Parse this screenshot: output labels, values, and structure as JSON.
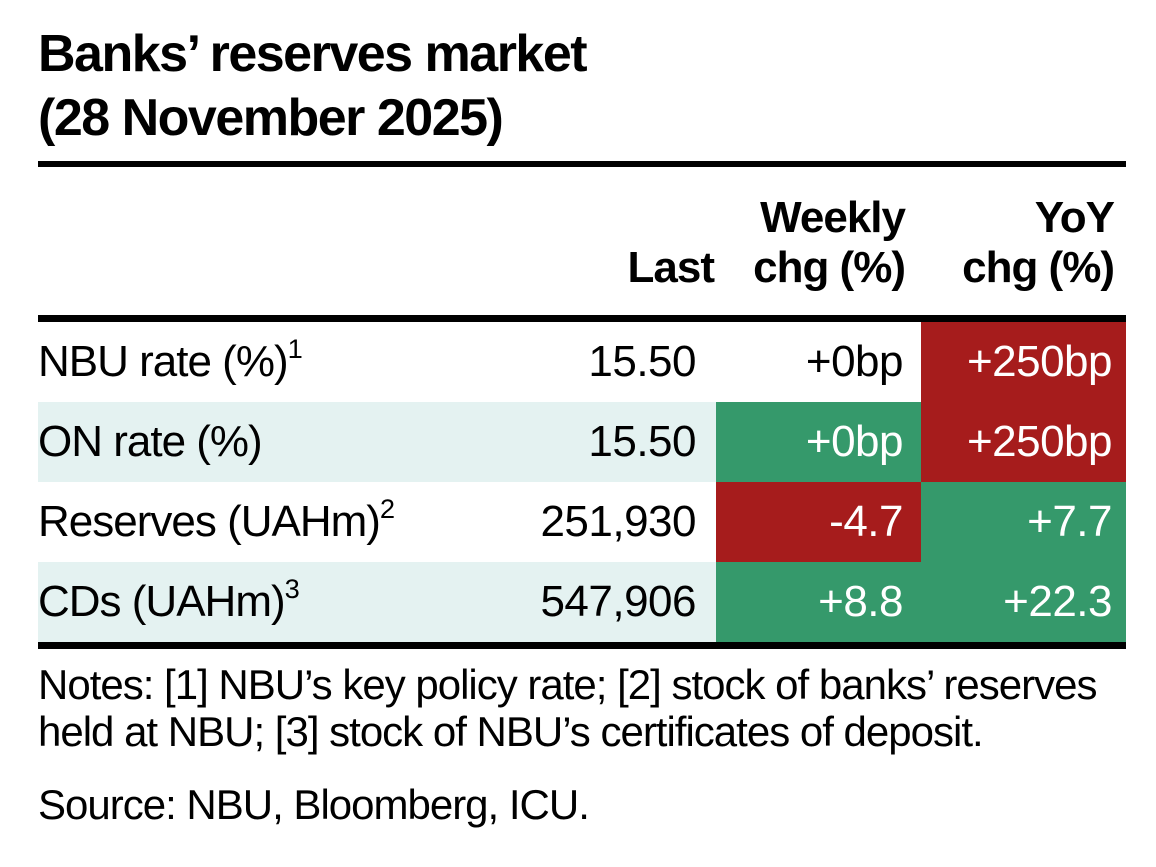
{
  "colors": {
    "negative": "#a61c1c",
    "positive": "#35996b",
    "stripe": "#e4f2f1",
    "text": "#000000",
    "value_on_color": "#ffffff"
  },
  "ui": {
    "title": {
      "line1": "Banks’ reserves market",
      "line2": "(28 November 2025)"
    },
    "header": {
      "last": {
        "line1": "Last",
        "line2": ""
      },
      "weekly": {
        "line1": "Weekly",
        "line2": "chg (%)"
      },
      "yoy": {
        "line1": "YoY",
        "line2": "chg (%)"
      }
    },
    "notes": {
      "line1": "Notes: [1] NBU’s key policy rate; [2] stock of banks’ reserves",
      "line2": "held at NBU; [3] stock of NBU’s certificates of deposit."
    },
    "source": "Source: NBU, Bloomberg, ICU."
  },
  "chart_data": {
    "type": "table",
    "title": "Banks’ reserves market (28 November 2025)",
    "columns": [
      "",
      "Last",
      "Weekly chg (%)",
      "YoY chg (%)"
    ],
    "rows": [
      {
        "label": "NBU rate (%)",
        "footnote": "1",
        "last": "15.50",
        "last_value": 15.5,
        "weekly": {
          "text": "+0bp",
          "tone": "none"
        },
        "yoy": {
          "text": "+250bp",
          "tone": "negative"
        }
      },
      {
        "label": "ON rate (%)",
        "footnote": "",
        "last": "15.50",
        "last_value": 15.5,
        "weekly": {
          "text": "+0bp",
          "tone": "positive"
        },
        "yoy": {
          "text": "+250bp",
          "tone": "negative"
        }
      },
      {
        "label": "Reserves (UAHm)",
        "footnote": "2",
        "last": "251,930",
        "last_value": 251930,
        "weekly": {
          "text": "-4.7",
          "tone": "negative"
        },
        "yoy": {
          "text": "+7.7",
          "tone": "positive"
        }
      },
      {
        "label": "CDs (UAHm)",
        "footnote": "3",
        "last": "547,906",
        "last_value": 547906,
        "weekly": {
          "text": "+8.8",
          "tone": "positive"
        },
        "yoy": {
          "text": "+22.3",
          "tone": "positive"
        }
      }
    ],
    "notes": "Notes: [1] NBU’s key policy rate; [2] stock of banks’ reserves held at NBU; [3] stock of NBU’s certificates of deposit.",
    "source": "Source: NBU, Bloomberg, ICU.",
    "legend": "red cell = negative change, green cell = positive change"
  }
}
